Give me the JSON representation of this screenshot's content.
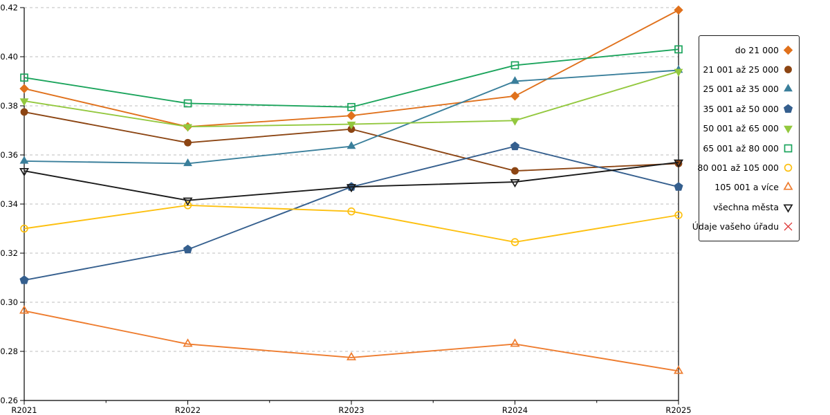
{
  "chart_data": {
    "type": "line",
    "title": "",
    "xlabel": "",
    "ylabel": "",
    "categories": [
      "R2021",
      "R2022",
      "R2023",
      "R2024",
      "R2025"
    ],
    "ylim": [
      0.26,
      0.42
    ],
    "ytick_step": 0.02,
    "ytick_labels": [
      "0.26",
      "0.28",
      "0.30",
      "0.32",
      "0.34",
      "0.36",
      "0.38",
      "0.40",
      "0.42"
    ],
    "grid": "horizontal-dashed",
    "legend_position": "right-outside",
    "series": [
      {
        "name": "do 21 000",
        "color": "#e0711c",
        "marker": "diamond",
        "fill": "filled",
        "values": [
          0.387,
          0.3715,
          0.376,
          0.384,
          0.419
        ]
      },
      {
        "name": "21 001 až 25 000",
        "color": "#8c4513",
        "marker": "circle",
        "fill": "filled",
        "values": [
          0.3775,
          0.365,
          0.3705,
          0.3535,
          0.3565
        ]
      },
      {
        "name": "25 001 až 35 000",
        "color": "#3a7f9b",
        "marker": "triangle-up",
        "fill": "filled",
        "values": [
          0.3575,
          0.3565,
          0.3635,
          0.39,
          0.3945
        ]
      },
      {
        "name": "35 001 až 50 000",
        "color": "#355f8e",
        "marker": "pentagon",
        "fill": "filled",
        "values": [
          0.309,
          0.3215,
          0.347,
          0.3635,
          0.347
        ]
      },
      {
        "name": "50 001 až 65 000",
        "color": "#93c83e",
        "marker": "triangle-down",
        "fill": "filled",
        "values": [
          0.382,
          0.3715,
          0.3725,
          0.374,
          0.394
        ]
      },
      {
        "name": "65 001 až 80 000",
        "color": "#1ba45c",
        "marker": "square",
        "fill": "open",
        "values": [
          0.3915,
          0.381,
          0.3795,
          0.3965,
          0.403
        ]
      },
      {
        "name": "80 001 až 105 000",
        "color": "#fdc010",
        "marker": "circle",
        "fill": "open",
        "values": [
          0.33,
          0.3395,
          0.337,
          0.3245,
          0.3355
        ]
      },
      {
        "name": "105 001 a více",
        "color": "#ee7c2e",
        "marker": "triangle-up",
        "fill": "open",
        "values": [
          0.2965,
          0.283,
          0.2775,
          0.283,
          0.272
        ]
      },
      {
        "name": "všechna města",
        "color": "#1a1a1a",
        "marker": "triangle-down",
        "fill": "open",
        "values": [
          0.3535,
          0.3415,
          0.347,
          0.349,
          0.357
        ]
      },
      {
        "name": "Údaje vašeho úřadu",
        "color": "#dd3333",
        "marker": "x",
        "fill": "open",
        "values": []
      }
    ]
  }
}
